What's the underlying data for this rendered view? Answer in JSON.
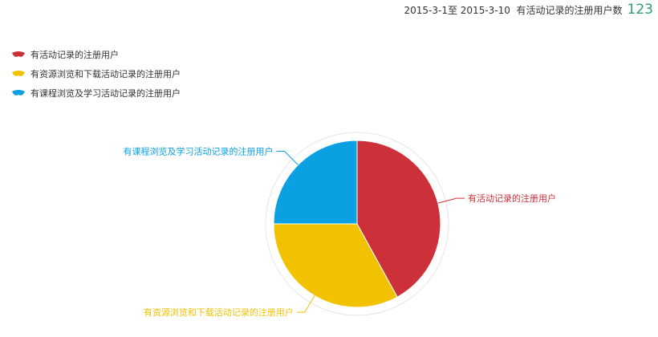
{
  "header": {
    "date_range": "2015-3-1至 2015-3-10",
    "metric_label": "有活动记录的注册用户数",
    "metric_value": "123"
  },
  "chart_data": {
    "type": "pie",
    "title": "",
    "series": [
      {
        "name": "有活动记录的注册用户",
        "value": 42,
        "color": "#cc3038",
        "legend_icon": "wing-shape-icon"
      },
      {
        "name": "有资源浏览和下载活动记录的注册用户",
        "value": 33,
        "color": "#f2c200",
        "legend_icon": "wing-shape-icon"
      },
      {
        "name": "有课程浏览及学习活动记录的注册用户",
        "value": 25,
        "color": "#0aa0e2",
        "legend_icon": "wing-shape-icon"
      }
    ],
    "legend_position": "top-left",
    "start_angle": "12 o'clock",
    "direction": "clockwise"
  }
}
